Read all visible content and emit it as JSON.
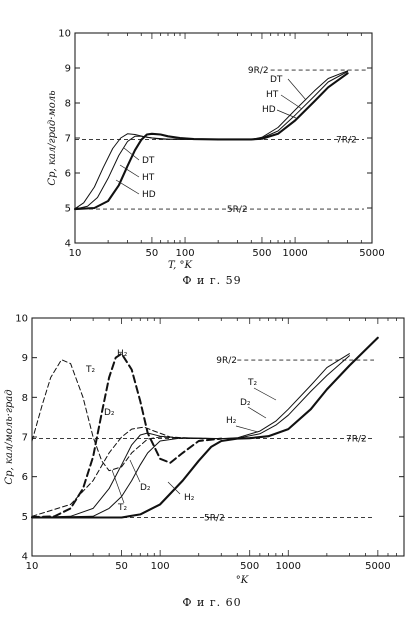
{
  "figures": [
    {
      "caption": "Ф и г. 59",
      "chart_data": {
        "type": "line",
        "xscale": "log",
        "xlim": [
          10,
          5000
        ],
        "ylim": [
          4,
          10
        ],
        "x_ticks": [
          "10",
          "50",
          "100",
          "500",
          "1000",
          "5000"
        ],
        "y_ticks": [
          "4",
          "5",
          "6",
          "7",
          "8",
          "9",
          "10"
        ],
        "xlabel": "T, °K",
        "ylabel": "Cp, кал/град·моль",
        "reference_lines": [
          {
            "label": "9R/2",
            "y": 8.94
          },
          {
            "label": "7R/2",
            "y": 6.96
          },
          {
            "label": "5R/2",
            "y": 4.97
          }
        ],
        "series": [
          {
            "name": "HD",
            "style": "thick",
            "points": [
              [
                10,
                4.97
              ],
              [
                15,
                5.0
              ],
              [
                20,
                5.2
              ],
              [
                25,
                5.65
              ],
              [
                30,
                6.2
              ],
              [
                35,
                6.65
              ],
              [
                40,
                6.95
              ],
              [
                45,
                7.1
              ],
              [
                50,
                7.12
              ],
              [
                60,
                7.1
              ],
              [
                70,
                7.05
              ],
              [
                90,
                7.0
              ],
              [
                120,
                6.97
              ],
              [
                200,
                6.96
              ],
              [
                400,
                6.96
              ],
              [
                500,
                6.98
              ],
              [
                700,
                7.12
              ],
              [
                1000,
                7.5
              ],
              [
                1500,
                8.05
              ],
              [
                2000,
                8.45
              ],
              [
                3000,
                8.85
              ]
            ]
          },
          {
            "name": "HT",
            "style": "thin",
            "points": [
              [
                10,
                4.97
              ],
              [
                13,
                5.05
              ],
              [
                16,
                5.3
              ],
              [
                20,
                5.85
              ],
              [
                25,
                6.5
              ],
              [
                30,
                6.9
              ],
              [
                35,
                7.05
              ],
              [
                40,
                7.05
              ],
              [
                50,
                7.0
              ],
              [
                70,
                6.97
              ],
              [
                100,
                6.96
              ],
              [
                400,
                6.96
              ],
              [
                500,
                7.0
              ],
              [
                700,
                7.2
              ],
              [
                1000,
                7.65
              ],
              [
                1500,
                8.2
              ],
              [
                2000,
                8.6
              ],
              [
                3000,
                8.9
              ]
            ]
          },
          {
            "name": "DT",
            "style": "thin",
            "points": [
              [
                10,
                4.98
              ],
              [
                12,
                5.15
              ],
              [
                15,
                5.6
              ],
              [
                18,
                6.15
              ],
              [
                22,
                6.7
              ],
              [
                26,
                7.0
              ],
              [
                30,
                7.12
              ],
              [
                35,
                7.1
              ],
              [
                45,
                7.02
              ],
              [
                60,
                6.97
              ],
              [
                100,
                6.96
              ],
              [
                400,
                6.96
              ],
              [
                500,
                7.02
              ],
              [
                700,
                7.3
              ],
              [
                1000,
                7.8
              ],
              [
                1500,
                8.35
              ],
              [
                2000,
                8.7
              ],
              [
                3000,
                8.92
              ]
            ]
          }
        ],
        "curve_labels_right": [
          "DT",
          "HT",
          "HD"
        ],
        "curve_labels_left": [
          "DT",
          "HT",
          "HD"
        ]
      }
    },
    {
      "caption": "Ф и г. 60",
      "chart_data": {
        "type": "line",
        "xscale": "log",
        "xlim": [
          10,
          8000
        ],
        "ylim": [
          4,
          10
        ],
        "x_ticks": [
          "10",
          "50",
          "100",
          "500",
          "1000",
          "5000"
        ],
        "y_ticks": [
          "4",
          "5",
          "6",
          "7",
          "8",
          "9",
          "10"
        ],
        "xlabel": "°K",
        "ylabel": "Cp, кал/моль·град",
        "reference_lines": [
          {
            "label": "9R/2",
            "y": 8.94
          },
          {
            "label": "7R/2",
            "y": 6.96
          },
          {
            "label": "5R/2",
            "y": 4.97
          }
        ],
        "series": [
          {
            "name": "T₂",
            "style": "dashed-thin",
            "points": [
              [
                10,
                6.9
              ],
              [
                12,
                7.8
              ],
              [
                14,
                8.5
              ],
              [
                17,
                8.95
              ],
              [
                20,
                8.85
              ],
              [
                25,
                8.0
              ],
              [
                30,
                7.0
              ],
              [
                35,
                6.4
              ],
              [
                40,
                6.15
              ],
              [
                50,
                6.25
              ],
              [
                60,
                6.6
              ],
              [
                80,
                6.95
              ],
              [
                100,
                7.0
              ],
              [
                150,
                6.97
              ],
              [
                300,
                6.96
              ]
            ]
          },
          {
            "name": "H₂",
            "style": "dashed-thick",
            "points": [
              [
                10,
                4.98
              ],
              [
                15,
                5.0
              ],
              [
                20,
                5.2
              ],
              [
                25,
                5.7
              ],
              [
                30,
                6.5
              ],
              [
                35,
                7.6
              ],
              [
                40,
                8.5
              ],
              [
                45,
                9.0
              ],
              [
                50,
                9.1
              ],
              [
                60,
                8.7
              ],
              [
                70,
                7.9
              ],
              [
                80,
                7.1
              ],
              [
                100,
                6.45
              ],
              [
                120,
                6.35
              ],
              [
                150,
                6.6
              ],
              [
                200,
                6.9
              ],
              [
                300,
                6.96
              ]
            ]
          },
          {
            "name": "D₂",
            "style": "dashed-thin",
            "points": [
              [
                10,
                5.0
              ],
              [
                20,
                5.3
              ],
              [
                30,
                5.9
              ],
              [
                40,
                6.6
              ],
              [
                50,
                7.0
              ],
              [
                60,
                7.2
              ],
              [
                75,
                7.25
              ],
              [
                90,
                7.15
              ],
              [
                120,
                7.0
              ],
              [
                200,
                6.96
              ],
              [
                300,
                6.96
              ]
            ]
          },
          {
            "name": "T₂",
            "style": "solid-thin",
            "points": [
              [
                10,
                4.97
              ],
              [
                20,
                5.0
              ],
              [
                30,
                5.2
              ],
              [
                40,
                5.7
              ],
              [
                50,
                6.3
              ],
              [
                60,
                6.8
              ],
              [
                70,
                7.05
              ],
              [
                80,
                7.1
              ],
              [
                100,
                7.02
              ],
              [
                150,
                6.97
              ],
              [
                300,
                6.96
              ],
              [
                400,
                6.98
              ],
              [
                600,
                7.15
              ],
              [
                800,
                7.4
              ],
              [
                1000,
                7.7
              ],
              [
                1500,
                8.3
              ],
              [
                2000,
                8.75
              ],
              [
                3000,
                9.1
              ]
            ]
          },
          {
            "name": "D₂",
            "style": "solid-thin",
            "points": [
              [
                10,
                4.97
              ],
              [
                30,
                5.0
              ],
              [
                40,
                5.2
              ],
              [
                50,
                5.5
              ],
              [
                60,
                5.9
              ],
              [
                70,
                6.3
              ],
              [
                80,
                6.6
              ],
              [
                100,
                6.9
              ],
              [
                150,
                6.98
              ],
              [
                300,
                6.96
              ],
              [
                400,
                6.97
              ],
              [
                600,
                7.08
              ],
              [
                800,
                7.3
              ],
              [
                1000,
                7.55
              ],
              [
                1500,
                8.15
              ],
              [
                2000,
                8.55
              ],
              [
                3000,
                9.05
              ]
            ]
          },
          {
            "name": "H₂",
            "style": "solid-thick",
            "points": [
              [
                10,
                4.97
              ],
              [
                50,
                4.97
              ],
              [
                70,
                5.05
              ],
              [
                100,
                5.3
              ],
              [
                150,
                5.9
              ],
              [
                200,
                6.4
              ],
              [
                250,
                6.75
              ],
              [
                300,
                6.9
              ],
              [
                400,
                6.96
              ],
              [
                500,
                6.97
              ],
              [
                700,
                7.02
              ],
              [
                1000,
                7.2
              ],
              [
                1500,
                7.7
              ],
              [
                2000,
                8.2
              ],
              [
                3000,
                8.8
              ],
              [
                5000,
                9.5
              ]
            ]
          }
        ]
      }
    }
  ]
}
